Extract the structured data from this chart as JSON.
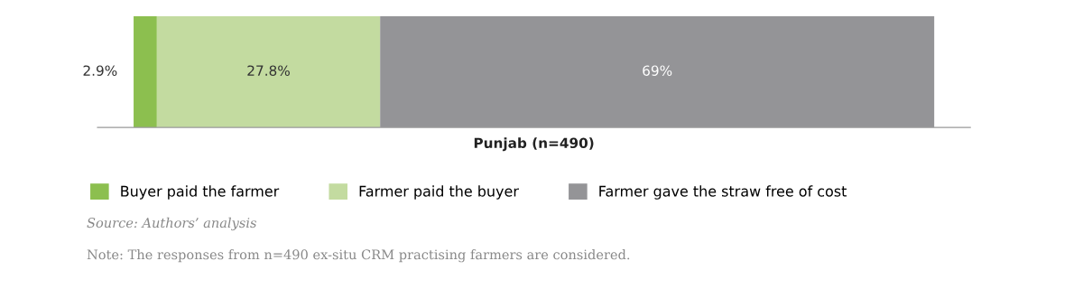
{
  "chart_data": {
    "type": "bar",
    "orientation": "horizontal",
    "stacked": true,
    "categories": [
      null
    ],
    "xlabel": "Punjab (n=490)",
    "xlim": [
      -4.5,
      104.2
    ],
    "tick_labels": false,
    "series": [
      {
        "name": "Buyer paid the farmer",
        "color": "#8cbf4f",
        "values": [
          2.9
        ],
        "value_labels": [
          "2.9%"
        ]
      },
      {
        "name": "Farmer paid the buyer",
        "color": "#c3dba0",
        "values": [
          27.8
        ],
        "value_labels": [
          "27.8%"
        ]
      },
      {
        "name": "Farmer gave the straw free of cost",
        "color": "#949497",
        "values": [
          69
        ],
        "value_labels": [
          "69%"
        ]
      }
    ],
    "legend": "bottom",
    "annotations": [
      "Source: Authors’ analysis",
      "Note: The responses from n=490 ex-situ CRM practising farmers are considered."
    ]
  }
}
